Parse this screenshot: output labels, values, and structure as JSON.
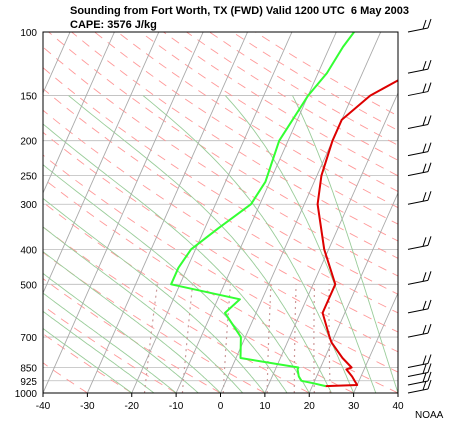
{
  "title_line1": "Sounding from Fort Worth, TX (FWD) Valid 1200 UTC  6 May 2003",
  "title_line2": "CAPE: 3576 J/kg",
  "credit": "NOAA",
  "colors": {
    "temperature": "#dd0000",
    "dewpoint": "#33ff33",
    "isotherm": "#aaaaaa",
    "dry_adiabat": "#ff9999",
    "moist_adiabat": "#99cc99",
    "mixing_ratio": "#cc9999",
    "wind_barb": "#000000"
  },
  "chart_data": {
    "type": "line",
    "title": "Sounding from Fort Worth, TX (FWD) Valid 1200 UTC  6 May 2003",
    "subtitle": "CAPE: 3576 J/kg",
    "xlim": [
      -40,
      40
    ],
    "ylim_pressure_hpa": [
      1000,
      100
    ],
    "y_scale": "log",
    "x_ticks": [
      -40,
      -30,
      -20,
      -10,
      0,
      10,
      20,
      30,
      40
    ],
    "x_tick_labels": [
      "-40",
      "-30",
      "-20",
      "-10",
      "0",
      "10",
      "20",
      "30",
      "40"
    ],
    "y_ticks": [
      100,
      150,
      200,
      250,
      300,
      400,
      500,
      700,
      850,
      925,
      1000
    ],
    "y_tick_labels": [
      "100",
      "150",
      "200",
      "250",
      "300",
      "400",
      "500",
      "700",
      "850",
      "925",
      "1000"
    ],
    "grid": true,
    "series": [
      {
        "role": "temperature",
        "color": "#dd0000",
        "points": [
          [
            957,
            23
          ],
          [
            950,
            30
          ],
          [
            925,
            29
          ],
          [
            900,
            28
          ],
          [
            860,
            26
          ],
          [
            850,
            27
          ],
          [
            800,
            24
          ],
          [
            725,
            20
          ],
          [
            700,
            19
          ],
          [
            600,
            15
          ],
          [
            540,
            15
          ],
          [
            500,
            15
          ],
          [
            400,
            9
          ],
          [
            300,
            3
          ],
          [
            250,
            1
          ],
          [
            200,
            0
          ],
          [
            175,
            0
          ],
          [
            150,
            4
          ],
          [
            130,
            11
          ],
          [
            110,
            12
          ],
          [
            100,
            14
          ]
        ]
      },
      {
        "role": "dewpoint",
        "color": "#33ff33",
        "points": [
          [
            957,
            23
          ],
          [
            940,
            20
          ],
          [
            925,
            17
          ],
          [
            900,
            16
          ],
          [
            860,
            15
          ],
          [
            850,
            15
          ],
          [
            800,
            1
          ],
          [
            700,
            -1
          ],
          [
            600,
            -7
          ],
          [
            550,
            -5
          ],
          [
            500,
            -22
          ],
          [
            450,
            -22
          ],
          [
            400,
            -21
          ],
          [
            350,
            -17
          ],
          [
            300,
            -12
          ],
          [
            260,
            -11
          ],
          [
            200,
            -12
          ],
          [
            150,
            -10
          ],
          [
            130,
            -8
          ],
          [
            110,
            -7
          ],
          [
            100,
            -6
          ]
        ]
      }
    ],
    "wind_profile_hpa": [
      100,
      130,
      150,
      185,
      220,
      250,
      300,
      400,
      500,
      600,
      700,
      850,
      900,
      950,
      1000
    ]
  }
}
